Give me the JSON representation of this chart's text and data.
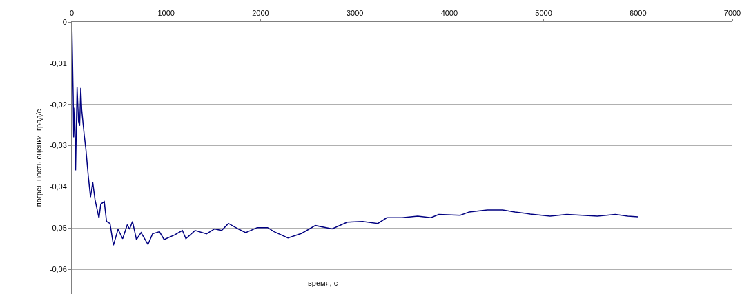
{
  "chart_data": {
    "type": "line",
    "xlabel": "время, с",
    "ylabel": "погрешность оценки, град/с",
    "x": [
      0,
      7,
      15,
      20,
      30,
      40,
      56,
      71,
      83,
      95,
      105,
      132,
      149,
      173,
      198,
      222,
      246,
      288,
      307,
      344,
      368,
      405,
      441,
      490,
      539,
      588,
      612,
      643,
      685,
      734,
      807,
      856,
      929,
      978,
      1087,
      1172,
      1209,
      1306,
      1428,
      1514,
      1587,
      1660,
      1770,
      1843,
      1965,
      2075,
      2145,
      2291,
      2436,
      2581,
      2759,
      2919,
      3082,
      3243,
      3338,
      3501,
      3665,
      3806,
      3889,
      4116,
      4212,
      4403,
      4566,
      4695,
      4858,
      5068,
      5246,
      5406,
      5570,
      5760,
      5892,
      6000
    ],
    "series": [
      {
        "color": "#000080",
        "values": [
          0,
          -0.008,
          -0.018,
          -0.028,
          -0.0208,
          -0.036,
          -0.0158,
          -0.0241,
          -0.0252,
          -0.016,
          -0.0213,
          -0.0275,
          -0.0308,
          -0.037,
          -0.0425,
          -0.0389,
          -0.0431,
          -0.0476,
          -0.0442,
          -0.0436,
          -0.0484,
          -0.0489,
          -0.0542,
          -0.0503,
          -0.0526,
          -0.0492,
          -0.0503,
          -0.0484,
          -0.0528,
          -0.0511,
          -0.054,
          -0.0514,
          -0.0509,
          -0.0528,
          -0.0517,
          -0.0506,
          -0.0526,
          -0.0506,
          -0.0514,
          -0.0502,
          -0.0506,
          -0.0489,
          -0.0503,
          -0.0511,
          -0.0499,
          -0.0499,
          -0.0509,
          -0.0524,
          -0.0513,
          -0.0494,
          -0.0502,
          -0.0486,
          -0.0484,
          -0.0489,
          -0.0475,
          -0.0475,
          -0.0471,
          -0.0475,
          -0.0467,
          -0.0469,
          -0.0461,
          -0.0456,
          -0.0456,
          -0.0461,
          -0.0466,
          -0.0471,
          -0.0467,
          -0.0469,
          -0.0471,
          -0.0467,
          -0.0471,
          -0.0473
        ]
      }
    ],
    "xlim": [
      0,
      7000
    ],
    "xticks": [
      0,
      1000,
      2000,
      3000,
      4000,
      5000,
      6000,
      7000
    ],
    "ylim": [
      -0.066,
      0
    ],
    "yticks": [
      {
        "value": 0,
        "label": "0"
      },
      {
        "value": -0.01,
        "label": "-0,01"
      },
      {
        "value": -0.02,
        "label": "-0,02"
      },
      {
        "value": -0.03,
        "label": "-0,03"
      },
      {
        "value": -0.04,
        "label": "-0,04"
      },
      {
        "value": -0.05,
        "label": "-0,05"
      },
      {
        "value": -0.06,
        "label": "-0,06"
      }
    ],
    "grid": "y",
    "marker": "none",
    "line_style": "solid"
  }
}
